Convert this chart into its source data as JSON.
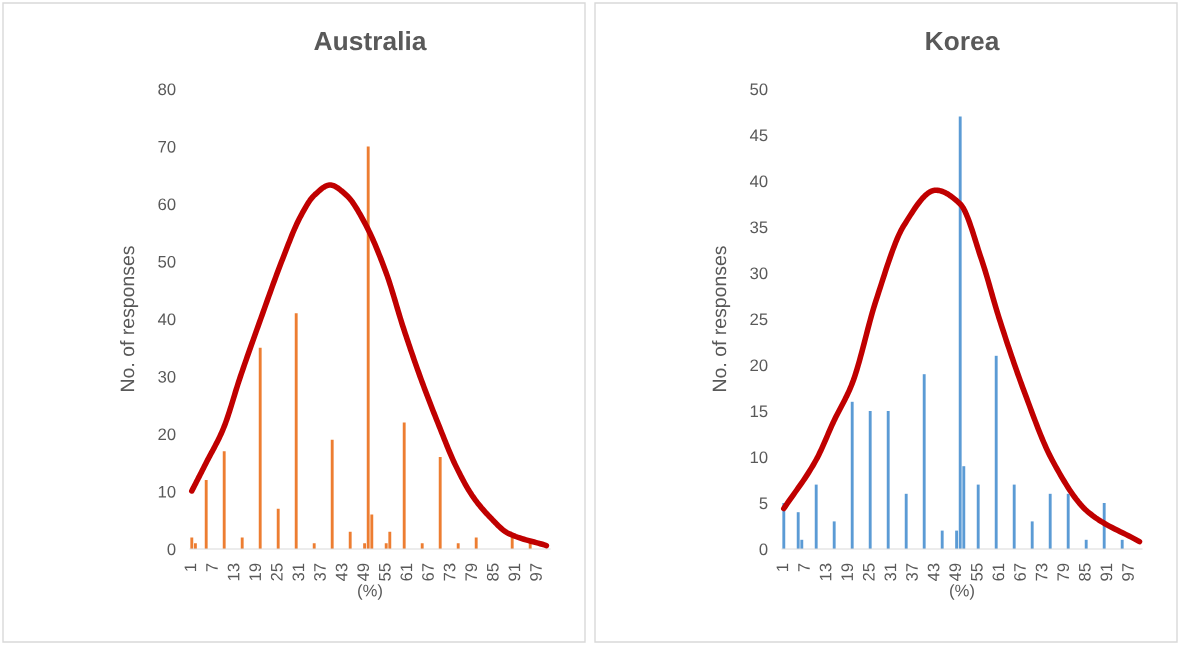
{
  "chart_data": [
    {
      "type": "bar",
      "title": "Australia",
      "xlabel": "(%)",
      "ylabel": "No. of responses",
      "xlim": [
        0.5,
        100.5
      ],
      "xticks": [
        1,
        7,
        13,
        19,
        25,
        31,
        37,
        43,
        49,
        55,
        61,
        67,
        73,
        79,
        85,
        91,
        97
      ],
      "ylim": [
        0,
        80
      ],
      "yticks": [
        0,
        10,
        20,
        30,
        40,
        50,
        60,
        70,
        80
      ],
      "grid": false,
      "series": [
        {
          "color": "#ed7d31",
          "x": [
            1,
            2,
            5,
            10,
            15,
            20,
            25,
            30,
            35,
            40,
            45,
            49,
            50,
            51,
            55,
            56,
            60,
            65,
            70,
            75,
            80,
            90,
            95
          ],
          "values": [
            2,
            1,
            12,
            17,
            2,
            35,
            7,
            41,
            1,
            19,
            3,
            1,
            70,
            6,
            1,
            3,
            22,
            1,
            16,
            1,
            2,
            2,
            1
          ]
        },
        {
          "type": "line",
          "color": "#c00000",
          "x": [
            1,
            5,
            9.8,
            14.5,
            19.9,
            26.2,
            31,
            35,
            39.4,
            44,
            49.3,
            55,
            59.8,
            64.7,
            69.5,
            74.3,
            79.1,
            83.9,
            88.7,
            99.5
          ],
          "values": [
            10.1,
            15,
            21,
            30,
            39.6,
            50.4,
            57.6,
            61.5,
            63.3,
            61.5,
            56.4,
            48,
            38.4,
            29.5,
            21.7,
            14.5,
            9.1,
            5.5,
            2.8,
            0.6
          ]
        }
      ]
    },
    {
      "type": "bar",
      "title": "Korea",
      "xlabel": "(%)",
      "ylabel": "No. of responses",
      "xlim": [
        0.5,
        100.5
      ],
      "xticks": [
        1,
        7,
        13,
        19,
        25,
        31,
        37,
        43,
        49,
        55,
        61,
        67,
        73,
        79,
        85,
        91,
        97
      ],
      "ylim": [
        0,
        50
      ],
      "yticks": [
        0,
        5,
        10,
        15,
        20,
        25,
        30,
        35,
        40,
        45,
        50
      ],
      "grid": false,
      "series": [
        {
          "color": "#5b9bd5",
          "x": [
            1,
            5,
            6,
            10,
            15,
            20,
            25,
            30,
            35,
            40,
            45,
            49,
            50,
            51,
            55,
            60,
            65,
            70,
            75,
            80,
            85,
            90,
            95
          ],
          "values": [
            5,
            4,
            1,
            7,
            3,
            16,
            15,
            15,
            6,
            19,
            2,
            2,
            47,
            9,
            7,
            21,
            7,
            3,
            6,
            6,
            1,
            5,
            1
          ]
        },
        {
          "type": "line",
          "color": "#c00000",
          "x": [
            1,
            10,
            14.9,
            20,
            26.6,
            34.4,
            43.2,
            50,
            55.9,
            60.8,
            67.7,
            75.5,
            85.3,
            99.8
          ],
          "values": [
            4.4,
            9.7,
            13.9,
            18,
            27,
            35.2,
            39,
            37.5,
            31.5,
            25.1,
            17.2,
            9.7,
            4.1,
            0.8
          ]
        }
      ]
    }
  ]
}
